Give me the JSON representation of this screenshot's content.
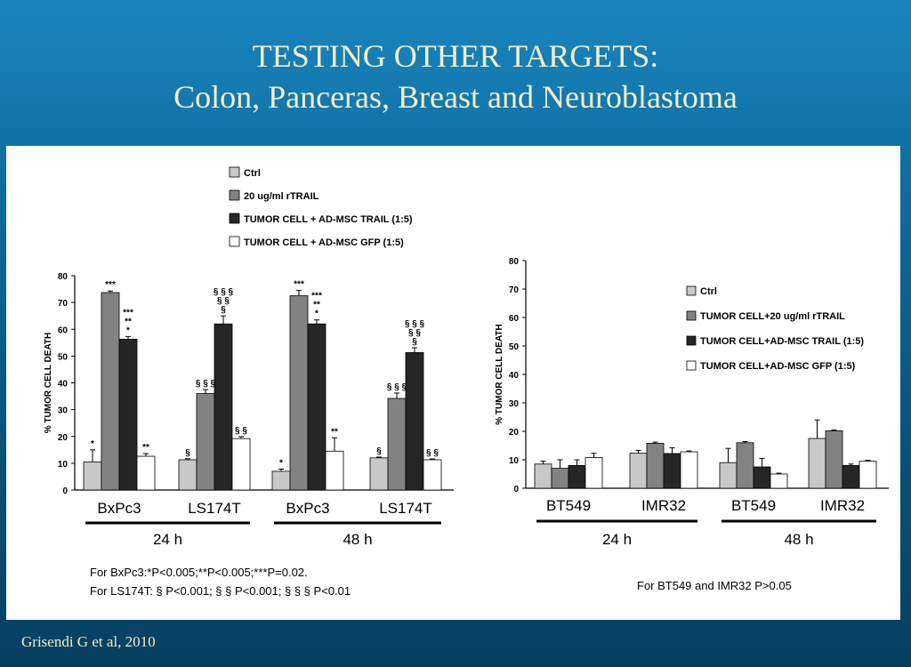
{
  "title": {
    "line1": "TESTING OTHER TARGETS:",
    "line2": "Colon, Panceras, Breast and Neuroblastoma"
  },
  "citation": "Grisendi G et al, 2010",
  "colors": {
    "bar_fills": [
      "#c8c8c8",
      "#828282",
      "#262626",
      "#ffffff"
    ],
    "title_text": "#f3efc8",
    "background": "#0f6fa3"
  },
  "chart_data": [
    {
      "type": "bar",
      "ylabel": "% TUMOR CELL DEATH",
      "ylim": [
        0,
        80
      ],
      "yticks": [
        0,
        10,
        20,
        30,
        40,
        50,
        60,
        70,
        80
      ],
      "legend_position": "top",
      "legend": [
        "Ctrl",
        "20 ug/ml rTRAIL",
        "TUMOR CELL + AD-MSC TRAIL (1:5)",
        "TUMOR CELL + AD-MSC GFP (1:5)"
      ],
      "categories": [
        "BxPc3",
        "LS174T",
        "BxPc3",
        "LS174T"
      ],
      "time_groups": [
        {
          "label": "24 h",
          "categories": [
            "BxPc3",
            "LS174T"
          ]
        },
        {
          "label": "48 h",
          "categories": [
            "BxPc3",
            "LS174T"
          ]
        }
      ],
      "series": [
        {
          "values": [
            10.5,
            11.3,
            7.0,
            12.0
          ],
          "errors": [
            4.5,
            0.4,
            0.8,
            0.3
          ]
        },
        {
          "values": [
            73.7,
            36.0,
            72.5,
            34.2
          ],
          "errors": [
            0.6,
            1.5,
            2.0,
            2.0
          ]
        },
        {
          "values": [
            56.3,
            62.0,
            62.0,
            51.3
          ],
          "errors": [
            1.0,
            3.0,
            1.5,
            1.8
          ]
        },
        {
          "values": [
            12.6,
            19.2,
            14.5,
            11.3
          ],
          "errors": [
            1.0,
            0.7,
            5.0,
            0.3
          ]
        }
      ],
      "annotations": [
        [
          "*",
          "§",
          "*",
          "§"
        ],
        [
          "***",
          "§ § §",
          "***",
          "§ § §"
        ],
        [
          [
            "***",
            "**",
            "*"
          ],
          [
            "§ § §",
            "§ §",
            "§"
          ],
          [
            "***",
            "**",
            "*"
          ],
          [
            "§ § §",
            "§ §",
            "§"
          ]
        ],
        [
          "**",
          "§ §",
          "**",
          "§ §"
        ]
      ],
      "footnotes": [
        "For BxPc3:*P<0.005;**P<0.005;***P=0.02.",
        "For LS174T: § P<0.001; § § P<0.001; § § § P<0.01"
      ]
    },
    {
      "type": "bar",
      "ylabel": "% TUMOR CELL DEATH",
      "ylim": [
        0,
        80
      ],
      "yticks": [
        0,
        10,
        20,
        30,
        40,
        50,
        60,
        70,
        80
      ],
      "legend_position": "middle-right",
      "legend": [
        "Ctrl",
        "TUMOR CELL+20 ug/ml rTRAIL",
        "TUMOR CELL+AD-MSC TRAIL (1:5)",
        "TUMOR CELL+AD-MSC GFP (1:5)"
      ],
      "categories": [
        "BT549",
        "IMR32",
        "BT549",
        "IMR32"
      ],
      "time_groups": [
        {
          "label": "24 h",
          "categories": [
            "BT549",
            "IMR32"
          ]
        },
        {
          "label": "48 h",
          "categories": [
            "BT549",
            "IMR32"
          ]
        }
      ],
      "series": [
        {
          "values": [
            8.5,
            12.3,
            9.0,
            17.5
          ],
          "errors": [
            1.0,
            1.0,
            5.0,
            6.5
          ]
        },
        {
          "values": [
            7.0,
            15.8,
            16.0,
            20.2
          ],
          "errors": [
            3.0,
            0.4,
            0.4,
            0.3
          ]
        },
        {
          "values": [
            8.0,
            12.2,
            7.5,
            8.0
          ],
          "errors": [
            2.0,
            2.0,
            3.0,
            0.5
          ]
        },
        {
          "values": [
            10.8,
            12.8,
            5.0,
            9.5
          ],
          "errors": [
            1.5,
            0.3,
            0.3,
            0.3
          ]
        }
      ],
      "footnotes": [
        "For BT549 and IMR32 P>0.05"
      ]
    }
  ]
}
